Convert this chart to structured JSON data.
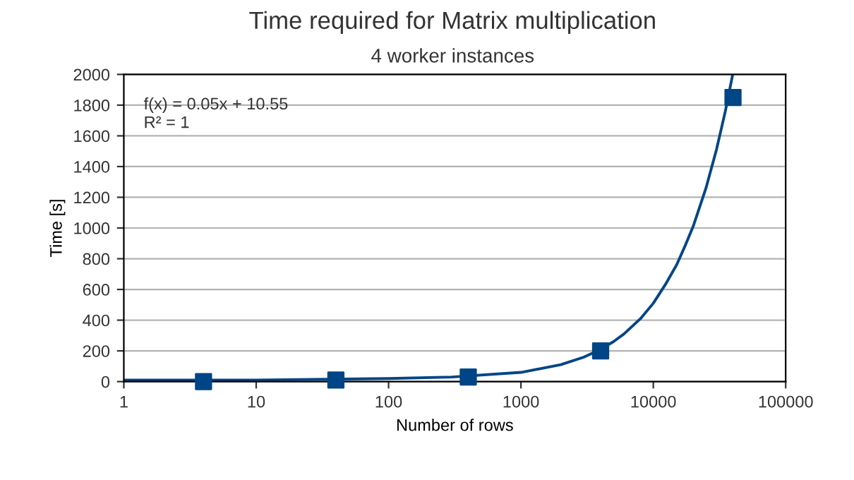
{
  "chart_data": {
    "type": "scatter",
    "title": "Time required for Matrix multiplication",
    "subtitle": "4 worker instances",
    "xlabel": "Number of rows",
    "ylabel": "Time [s]",
    "log": "x",
    "xlim": [
      1,
      100000
    ],
    "xticks": [
      1,
      10,
      100,
      1000,
      10000,
      100000
    ],
    "ylim": [
      0,
      2000
    ],
    "yticks": [
      0,
      200,
      400,
      600,
      800,
      1000,
      1200,
      1400,
      1600,
      1800,
      2000
    ],
    "grid": "y",
    "series": [
      {
        "marker": "square",
        "color": "#004586",
        "x": [
          4,
          40,
          400,
          4000,
          40000
        ],
        "values": [
          0,
          10,
          30,
          200,
          1850
        ]
      },
      {
        "type": "line",
        "marker": "none",
        "line_style": "solid",
        "color": "#004586",
        "x": [
          1,
          10,
          100,
          300,
          1000,
          2000,
          3000,
          4000,
          5000,
          6000,
          8000,
          10000,
          12500,
          15000,
          17500,
          20000,
          25000,
          30000,
          35000,
          39800
        ],
        "values": [
          10,
          10,
          20,
          30,
          60,
          110,
          160,
          210,
          260,
          310,
          410,
          510,
          640,
          760,
          890,
          1010,
          1260,
          1510,
          1760,
          2000
        ]
      }
    ],
    "annotations": [
      "f(x) = 0.05x + 10.55",
      "R² = 1"
    ]
  }
}
